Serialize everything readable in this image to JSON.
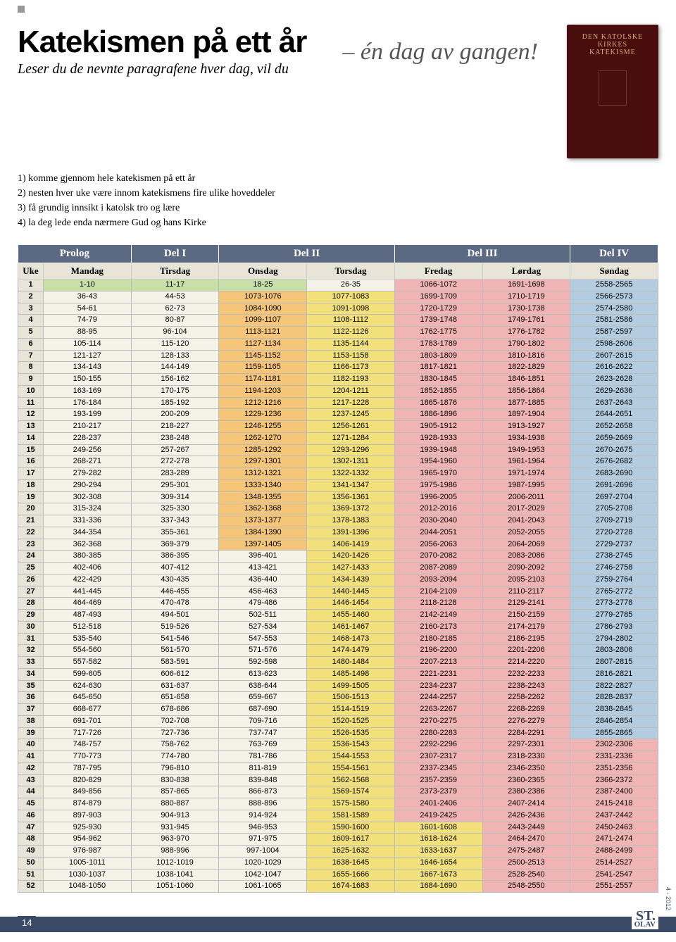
{
  "colors": {
    "header_bg": "#5b6a82",
    "dayrow_bg": "#e8e4d8",
    "green": "#c8e0a8",
    "orange": "#f5c67a",
    "yellow": "#f2e07a",
    "pink": "#f0b4b4",
    "blue": "#b4cce0",
    "plain": "#f5f2e8"
  },
  "header": {
    "title": "Katekismen på ett år",
    "subtitle": "Leser du de nevnte paragrafene hver dag, vil du",
    "tagline": "– én dag av gangen!",
    "book_lines": [
      "DEN KATOLSKE",
      "KIRKES",
      "KATEKISME"
    ]
  },
  "intro": [
    "1) komme gjennom hele katekismen på ett år",
    "2) nesten hver uke være innom katekismens fire ulike hoveddeler",
    "3) få grundig innsikt i katolsk tro og lære",
    "4) la deg lede enda nærmere Gud og hans Kirke"
  ],
  "parts": [
    {
      "label": "Prolog",
      "span": 2
    },
    {
      "label": "Del I",
      "span": 1
    },
    {
      "label": "Del II",
      "span": 2
    },
    {
      "label": "Del III",
      "span": 2
    },
    {
      "label": "Del IV",
      "span": 1
    }
  ],
  "days": [
    "Uke",
    "Mandag",
    "Tirsdag",
    "Onsdag",
    "Torsdag",
    "Fredag",
    "Lørdag",
    "Søndag"
  ],
  "col_colors": [
    "dayrow_bg",
    "plain",
    "plain",
    "orange",
    "yellow",
    "pink",
    "pink",
    "blue"
  ],
  "row1_colors": [
    "dayrow_bg",
    "green",
    "green",
    "green",
    "plain",
    "pink",
    "pink",
    "blue"
  ],
  "rows": [
    [
      "1",
      "1-10",
      "11-17",
      "18-25",
      "26-35",
      "1066-1072",
      "1691-1698",
      "2558-2565"
    ],
    [
      "2",
      "36-43",
      "44-53",
      "1073-1076",
      "1077-1083",
      "1699-1709",
      "1710-1719",
      "2566-2573"
    ],
    [
      "3",
      "54-61",
      "62-73",
      "1084-1090",
      "1091-1098",
      "1720-1729",
      "1730-1738",
      "2574-2580"
    ],
    [
      "4",
      "74-79",
      "80-87",
      "1099-1107",
      "1108-1112",
      "1739-1748",
      "1749-1761",
      "2581-2586"
    ],
    [
      "5",
      "88-95",
      "96-104",
      "1113-1121",
      "1122-1126",
      "1762-1775",
      "1776-1782",
      "2587-2597"
    ],
    [
      "6",
      "105-114",
      "115-120",
      "1127-1134",
      "1135-1144",
      "1783-1789",
      "1790-1802",
      "2598-2606"
    ],
    [
      "7",
      "121-127",
      "128-133",
      "1145-1152",
      "1153-1158",
      "1803-1809",
      "1810-1816",
      "2607-2615"
    ],
    [
      "8",
      "134-143",
      "144-149",
      "1159-1165",
      "1166-1173",
      "1817-1821",
      "1822-1829",
      "2616-2622"
    ],
    [
      "9",
      "150-155",
      "156-162",
      "1174-1181",
      "1182-1193",
      "1830-1845",
      "1846-1851",
      "2623-2628"
    ],
    [
      "10",
      "163-169",
      "170-175",
      "1194-1203",
      "1204-1211",
      "1852-1855",
      "1856-1864",
      "2629-2636"
    ],
    [
      "11",
      "176-184",
      "185-192",
      "1212-1216",
      "1217-1228",
      "1865-1876",
      "1877-1885",
      "2637-2643"
    ],
    [
      "12",
      "193-199",
      "200-209",
      "1229-1236",
      "1237-1245",
      "1886-1896",
      "1897-1904",
      "2644-2651"
    ],
    [
      "13",
      "210-217",
      "218-227",
      "1246-1255",
      "1256-1261",
      "1905-1912",
      "1913-1927",
      "2652-2658"
    ],
    [
      "14",
      "228-237",
      "238-248",
      "1262-1270",
      "1271-1284",
      "1928-1933",
      "1934-1938",
      "2659-2669"
    ],
    [
      "15",
      "249-256",
      "257-267",
      "1285-1292",
      "1293-1296",
      "1939-1948",
      "1949-1953",
      "2670-2675"
    ],
    [
      "16",
      "268-271",
      "272-278",
      "1297-1301",
      "1302-1311",
      "1954-1960",
      "1961-1964",
      "2676-2682"
    ],
    [
      "17",
      "279-282",
      "283-289",
      "1312-1321",
      "1322-1332",
      "1965-1970",
      "1971-1974",
      "2683-2690"
    ],
    [
      "18",
      "290-294",
      "295-301",
      "1333-1340",
      "1341-1347",
      "1975-1986",
      "1987-1995",
      "2691-2696"
    ],
    [
      "19",
      "302-308",
      "309-314",
      "1348-1355",
      "1356-1361",
      "1996-2005",
      "2006-2011",
      "2697-2704"
    ],
    [
      "20",
      "315-324",
      "325-330",
      "1362-1368",
      "1369-1372",
      "2012-2016",
      "2017-2029",
      "2705-2708"
    ],
    [
      "21",
      "331-336",
      "337-343",
      "1373-1377",
      "1378-1383",
      "2030-2040",
      "2041-2043",
      "2709-2719"
    ],
    [
      "22",
      "344-354",
      "355-361",
      "1384-1390",
      "1391-1396",
      "2044-2051",
      "2052-2055",
      "2720-2728"
    ],
    [
      "23",
      "362-368",
      "369-379",
      "1397-1405",
      "1406-1419",
      "2056-2063",
      "2064-2069",
      "2729-2737"
    ],
    [
      "24",
      "380-385",
      "386-395",
      "396-401",
      "1420-1426",
      "2070-2082",
      "2083-2086",
      "2738-2745"
    ],
    [
      "25",
      "402-406",
      "407-412",
      "413-421",
      "1427-1433",
      "2087-2089",
      "2090-2092",
      "2746-2758"
    ],
    [
      "26",
      "422-429",
      "430-435",
      "436-440",
      "1434-1439",
      "2093-2094",
      "2095-2103",
      "2759-2764"
    ],
    [
      "27",
      "441-445",
      "446-455",
      "456-463",
      "1440-1445",
      "2104-2109",
      "2110-2117",
      "2765-2772"
    ],
    [
      "28",
      "464-469",
      "470-478",
      "479-486",
      "1446-1454",
      "2118-2128",
      "2129-2141",
      "2773-2778"
    ],
    [
      "29",
      "487-493",
      "494-501",
      "502-511",
      "1455-1460",
      "2142-2149",
      "2150-2159",
      "2779-2785"
    ],
    [
      "30",
      "512-518",
      "519-526",
      "527-534",
      "1461-1467",
      "2160-2173",
      "2174-2179",
      "2786-2793"
    ],
    [
      "31",
      "535-540",
      "541-546",
      "547-553",
      "1468-1473",
      "2180-2185",
      "2186-2195",
      "2794-2802"
    ],
    [
      "32",
      "554-560",
      "561-570",
      "571-576",
      "1474-1479",
      "2196-2200",
      "2201-2206",
      "2803-2806"
    ],
    [
      "33",
      "557-582",
      "583-591",
      "592-598",
      "1480-1484",
      "2207-2213",
      "2214-2220",
      "2807-2815"
    ],
    [
      "34",
      "599-605",
      "606-612",
      "613-623",
      "1485-1498",
      "2221-2231",
      "2232-2233",
      "2816-2821"
    ],
    [
      "35",
      "624-630",
      "631-637",
      "638-644",
      "1499-1505",
      "2234-2237",
      "2238-2243",
      "2822-2827"
    ],
    [
      "36",
      "645-650",
      "651-658",
      "659-667",
      "1506-1513",
      "2244-2257",
      "2258-2262",
      "2828-2837"
    ],
    [
      "37",
      "668-677",
      "678-686",
      "687-690",
      "1514-1519",
      "2263-2267",
      "2268-2269",
      "2838-2845"
    ],
    [
      "38",
      "691-701",
      "702-708",
      "709-716",
      "1520-1525",
      "2270-2275",
      "2276-2279",
      "2846-2854"
    ],
    [
      "39",
      "717-726",
      "727-736",
      "737-747",
      "1526-1535",
      "2280-2283",
      "2284-2291",
      "2855-2865"
    ],
    [
      "40",
      "748-757",
      "758-762",
      "763-769",
      "1536-1543",
      "2292-2296",
      "2297-2301",
      "2302-2306"
    ],
    [
      "41",
      "770-773",
      "774-780",
      "781-786",
      "1544-1553",
      "2307-2317",
      "2318-2330",
      "2331-2336"
    ],
    [
      "42",
      "787-795",
      "796-810",
      "811-819",
      "1554-1561",
      "2337-2345",
      "2346-2350",
      "2351-2356"
    ],
    [
      "43",
      "820-829",
      "830-838",
      "839-848",
      "1562-1568",
      "2357-2359",
      "2360-2365",
      "2366-2372"
    ],
    [
      "44",
      "849-856",
      "857-865",
      "866-873",
      "1569-1574",
      "2373-2379",
      "2380-2386",
      "2387-2400"
    ],
    [
      "45",
      "874-879",
      "880-887",
      "888-896",
      "1575-1580",
      "2401-2406",
      "2407-2414",
      "2415-2418"
    ],
    [
      "46",
      "897-903",
      "904-913",
      "914-924",
      "1581-1589",
      "2419-2425",
      "2426-2436",
      "2437-2442"
    ],
    [
      "47",
      "925-930",
      "931-945",
      "946-953",
      "1590-1600",
      "1601-1608",
      "2443-2449",
      "2450-2463"
    ],
    [
      "48",
      "954-962",
      "963-970",
      "971-975",
      "1609-1617",
      "1618-1624",
      "2464-2470",
      "2471-2474"
    ],
    [
      "49",
      "976-987",
      "988-996",
      "997-1004",
      "1625-1632",
      "1633-1637",
      "2475-2487",
      "2488-2499"
    ],
    [
      "50",
      "1005-1011",
      "1012-1019",
      "1020-1029",
      "1638-1645",
      "1646-1654",
      "2500-2513",
      "2514-2527"
    ],
    [
      "51",
      "1030-1037",
      "1038-1041",
      "1042-1047",
      "1655-1666",
      "1667-1673",
      "2528-2540",
      "2541-2547"
    ],
    [
      "52",
      "1048-1050",
      "1051-1060",
      "1061-1065",
      "1674-1683",
      "1684-1690",
      "2548-2550",
      "2551-2557"
    ]
  ],
  "special_cells": {
    "24": {
      "3": "plain"
    },
    "25": {
      "3": "plain"
    },
    "26": {
      "3": "plain"
    },
    "27": {
      "3": "plain"
    },
    "28": {
      "3": "plain"
    },
    "29": {
      "3": "plain"
    },
    "30": {
      "3": "plain"
    },
    "31": {
      "3": "plain"
    },
    "32": {
      "3": "plain"
    },
    "33": {
      "3": "plain"
    },
    "34": {
      "3": "plain"
    },
    "35": {
      "3": "plain"
    },
    "36": {
      "3": "plain"
    },
    "37": {
      "3": "plain"
    },
    "38": {
      "3": "plain"
    },
    "39": {
      "3": "plain"
    },
    "40": {
      "3": "plain",
      "7": "pink"
    },
    "41": {
      "3": "plain",
      "7": "pink"
    },
    "42": {
      "3": "plain",
      "7": "pink"
    },
    "43": {
      "3": "plain",
      "7": "pink"
    },
    "44": {
      "3": "plain",
      "7": "pink"
    },
    "45": {
      "3": "plain",
      "7": "pink"
    },
    "46": {
      "3": "plain",
      "7": "pink"
    },
    "47": {
      "3": "plain",
      "5": "yellow",
      "7": "pink"
    },
    "48": {
      "3": "plain",
      "5": "yellow",
      "7": "pink"
    },
    "49": {
      "3": "plain",
      "5": "yellow",
      "7": "pink"
    },
    "50": {
      "3": "plain",
      "5": "yellow",
      "7": "pink"
    },
    "51": {
      "3": "plain",
      "5": "yellow",
      "7": "pink"
    },
    "52": {
      "3": "plain",
      "5": "yellow",
      "7": "pink"
    }
  },
  "footer": {
    "page": "14",
    "logo_top": "ST.",
    "logo_bottom": "OLAV",
    "issue": "4 - 2012"
  }
}
